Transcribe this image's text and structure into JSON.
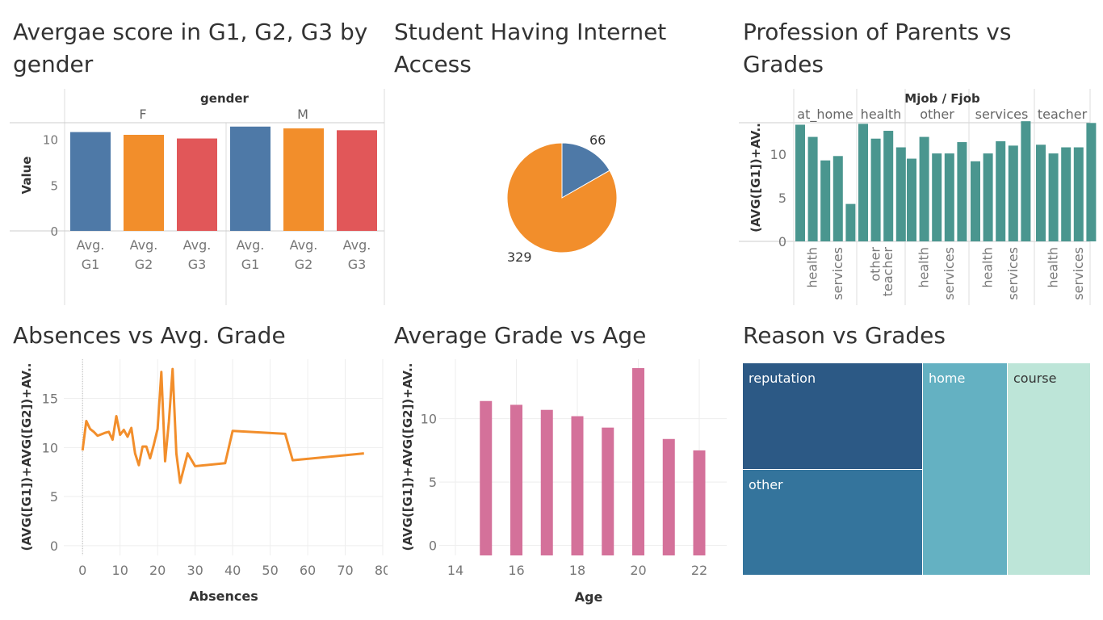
{
  "panels": {
    "gender": {
      "title": "Avergae score in G1, G2, G3 by gender"
    },
    "internet": {
      "title": "Student Having Internet Access"
    },
    "jobs": {
      "title": "Profession of Parents vs Grades"
    },
    "absences": {
      "title": "Absences vs Avg. Grade"
    },
    "age": {
      "title": "Average Grade vs Age"
    },
    "reason": {
      "title": "Reason vs Grades"
    }
  },
  "colors": {
    "blue": "#4e79a7",
    "orange": "#f28e2b",
    "red": "#e15759",
    "teal": "#4a968f",
    "pink": "#d4719a",
    "tm_reputation": "#2c5985",
    "tm_other": "#34749c",
    "tm_home": "#64b1c2",
    "tm_course": "#bde5d8"
  },
  "chart_data": [
    {
      "id": "gender",
      "type": "bar",
      "title": "Avergae score in G1, G2, G3 by gender",
      "column_header": "gender",
      "ylabel": "Value",
      "ylim": [
        0,
        12
      ],
      "yticks": [
        0,
        5,
        10
      ],
      "groups": [
        {
          "name": "F",
          "bars": [
            {
              "label": "Avg. G1",
              "value": 10.8,
              "color": "blue"
            },
            {
              "label": "Avg. G2",
              "value": 10.5,
              "color": "orange"
            },
            {
              "label": "Avg. G3",
              "value": 10.1,
              "color": "red"
            }
          ]
        },
        {
          "name": "M",
          "bars": [
            {
              "label": "Avg. G1",
              "value": 11.4,
              "color": "blue"
            },
            {
              "label": "Avg. G2",
              "value": 11.2,
              "color": "orange"
            },
            {
              "label": "Avg. G3",
              "value": 11.0,
              "color": "red"
            }
          ]
        }
      ]
    },
    {
      "id": "internet",
      "type": "pie",
      "title": "Student Having Internet Access",
      "slices": [
        {
          "value": 66,
          "label": "66",
          "color": "blue"
        },
        {
          "value": 329,
          "label": "329",
          "color": "orange"
        }
      ]
    },
    {
      "id": "jobs",
      "type": "bar",
      "title": "Profession of Parents vs Grades",
      "column_header": "Mjob / Fjob",
      "ylabel": "(AVG([G1])+AV..",
      "ylim": [
        0,
        14
      ],
      "yticks": [
        0,
        5,
        10
      ],
      "groups": [
        {
          "name": "at_home",
          "values": [
            13.4,
            12.0,
            9.3,
            9.8,
            4.3
          ],
          "labels": [
            "",
            "health",
            "",
            "services",
            ""
          ]
        },
        {
          "name": "health",
          "values": [
            13.5,
            11.8,
            12.7,
            10.8
          ],
          "labels": [
            "",
            "other",
            "teacher",
            ""
          ]
        },
        {
          "name": "other",
          "values": [
            9.5,
            12.0,
            10.1,
            10.1,
            11.4
          ],
          "labels": [
            "",
            "health",
            "",
            "services",
            ""
          ]
        },
        {
          "name": "services",
          "values": [
            9.2,
            10.1,
            11.5,
            11.0,
            13.8
          ],
          "labels": [
            "",
            "health",
            "",
            "services",
            ""
          ]
        },
        {
          "name": "teacher",
          "values": [
            11.1,
            10.1,
            10.8,
            10.8,
            13.6
          ],
          "labels": [
            "",
            "health",
            "",
            "services",
            ""
          ]
        }
      ]
    },
    {
      "id": "absences",
      "type": "line",
      "title": "Absences vs Avg. Grade",
      "xlabel": "Absences",
      "ylabel": "(AVG([G1])+AVG([G2])+AV..",
      "xlim": [
        -5,
        80
      ],
      "ylim": [
        -1,
        19
      ],
      "xticks": [
        0,
        10,
        20,
        30,
        40,
        50,
        60,
        70,
        80
      ],
      "yticks": [
        0,
        5,
        10,
        15
      ],
      "x": [
        0,
        1,
        2,
        3,
        4,
        6,
        7,
        8,
        9,
        10,
        11,
        12,
        13,
        14,
        15,
        16,
        17,
        18,
        19,
        20,
        21,
        22,
        23,
        24,
        25,
        26,
        28,
        30,
        38,
        40,
        54,
        56,
        75
      ],
      "y": [
        9.7,
        12.7,
        11.9,
        11.6,
        11.2,
        11.5,
        11.6,
        10.8,
        13.2,
        11.3,
        11.8,
        11.1,
        12.0,
        9.4,
        8.2,
        10.1,
        10.1,
        8.9,
        10.3,
        11.9,
        17.7,
        8.6,
        12.6,
        18.0,
        9.4,
        6.4,
        9.4,
        8.1,
        8.4,
        11.7,
        11.4,
        8.7,
        9.4
      ],
      "color": "orange"
    },
    {
      "id": "age",
      "type": "bar",
      "title": "Average Grade vs Age",
      "xlabel": "Age",
      "ylabel": "(AVG([G1])+AVG([G2])+AV..",
      "xlim": [
        13.5,
        23
      ],
      "ylim": [
        -0.8,
        14.7
      ],
      "xticks": [
        14,
        16,
        18,
        20,
        22
      ],
      "yticks": [
        0,
        5,
        10
      ],
      "x": [
        15,
        16,
        17,
        18,
        19,
        20,
        21,
        22
      ],
      "values": [
        11.4,
        11.1,
        10.7,
        10.2,
        9.3,
        14.0,
        8.4,
        7.5
      ],
      "color": "pink"
    },
    {
      "id": "reason",
      "type": "treemap",
      "title": "Reason vs Grades",
      "items": [
        {
          "label": "reputation",
          "color": "tm_reputation"
        },
        {
          "label": "other",
          "color": "tm_other"
        },
        {
          "label": "home",
          "color": "tm_home"
        },
        {
          "label": "course",
          "color": "tm_course"
        }
      ]
    }
  ]
}
